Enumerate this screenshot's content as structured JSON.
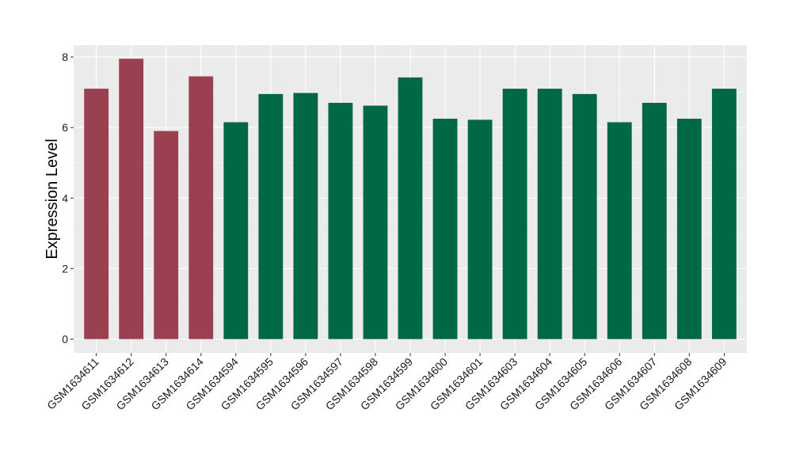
{
  "chart_data": {
    "type": "bar",
    "title": "",
    "xlabel": "",
    "ylabel": "Expression Level",
    "ylim": [
      0,
      8.4
    ],
    "yticks": [
      0,
      2,
      4,
      6,
      8
    ],
    "grid": true,
    "legend": "none",
    "colors": {
      "group_a": "#9a4050",
      "group_b": "#016845",
      "panel_bg": "#ebebeb",
      "grid_major": "#ffffff",
      "grid_minor": "#f5f5f5"
    },
    "categories": [
      "GSM1634611",
      "GSM1634612",
      "GSM1634613",
      "GSM1634614",
      "GSM1634594",
      "GSM1634595",
      "GSM1634596",
      "GSM1634597",
      "GSM1634598",
      "GSM1634599",
      "GSM1634600",
      "GSM1634601",
      "GSM1634603",
      "GSM1634604",
      "GSM1634605",
      "GSM1634606",
      "GSM1634607",
      "GSM1634608",
      "GSM1634609"
    ],
    "values": [
      7.1,
      7.95,
      5.9,
      7.45,
      6.15,
      6.95,
      6.98,
      6.7,
      6.62,
      7.42,
      6.25,
      6.22,
      7.1,
      7.1,
      6.95,
      6.15,
      6.7,
      6.25,
      7.1
    ],
    "groups": [
      "a",
      "a",
      "a",
      "a",
      "b",
      "b",
      "b",
      "b",
      "b",
      "b",
      "b",
      "b",
      "b",
      "b",
      "b",
      "b",
      "b",
      "b",
      "b"
    ]
  }
}
